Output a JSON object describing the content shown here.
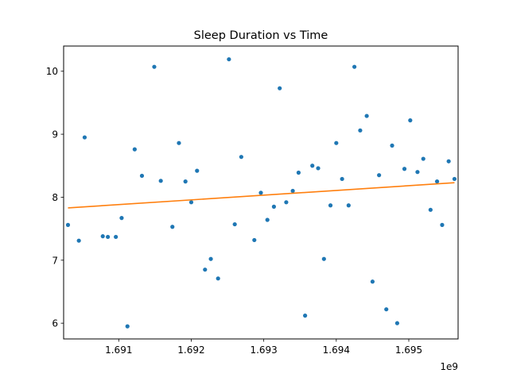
{
  "chart_data": {
    "type": "scatter",
    "title": "Sleep Duration vs Time",
    "xlabel": "",
    "ylabel": "",
    "x_offset_label": "1e9",
    "xlim": [
      1.69024,
      1.69568
    ],
    "ylim": [
      5.75,
      10.4
    ],
    "x_ticks": [
      1.691,
      1.692,
      1.693,
      1.694,
      1.695
    ],
    "x_tick_labels": [
      "1.691",
      "1.692",
      "1.693",
      "1.694",
      "1.695"
    ],
    "y_ticks": [
      6,
      7,
      8,
      9,
      10
    ],
    "y_tick_labels": [
      "6",
      "7",
      "8",
      "9",
      "10"
    ],
    "grid": false,
    "colors": {
      "points": "#1f77b4",
      "trend": "#ff7f0e"
    },
    "series": [
      {
        "kind": "points",
        "x": [
          1.6903,
          1.69045,
          1.69053,
          1.69078,
          1.69085,
          1.69096,
          1.69104,
          1.69112,
          1.69122,
          1.69132,
          1.69149,
          1.69158,
          1.69174,
          1.69183,
          1.69192,
          1.692,
          1.69208,
          1.69219,
          1.69227,
          1.69237,
          1.69252,
          1.6926,
          1.69269,
          1.69287,
          1.69296,
          1.69305,
          1.69314,
          1.69322,
          1.69331,
          1.6934,
          1.69348,
          1.69357,
          1.69367,
          1.69375,
          1.69383,
          1.69392,
          1.694,
          1.69408,
          1.69417,
          1.69425,
          1.69433,
          1.69442,
          1.6945,
          1.69459,
          1.69469,
          1.69477,
          1.69484,
          1.69494,
          1.69502,
          1.69512,
          1.6952,
          1.6953,
          1.69539,
          1.69546,
          1.69555,
          1.69563
        ],
        "y": [
          7.56,
          7.31,
          8.95,
          7.38,
          7.37,
          7.37,
          7.67,
          5.95,
          8.76,
          8.34,
          10.07,
          8.26,
          7.53,
          8.86,
          8.25,
          7.92,
          8.42,
          6.85,
          7.02,
          6.71,
          10.19,
          7.57,
          8.64,
          7.32,
          8.07,
          7.64,
          7.85,
          9.73,
          7.92,
          8.1,
          8.39,
          6.12,
          8.5,
          8.46,
          7.02,
          7.87,
          8.86,
          8.29,
          7.87,
          10.07,
          9.06,
          9.29,
          6.66,
          8.35,
          6.22,
          8.82,
          6.0,
          8.45,
          9.22,
          8.4,
          8.61,
          7.8,
          8.25,
          7.56,
          8.57,
          8.29
        ]
      },
      {
        "kind": "trend-line",
        "x": [
          1.6903,
          1.69563
        ],
        "y": [
          7.83,
          8.23
        ]
      }
    ]
  }
}
